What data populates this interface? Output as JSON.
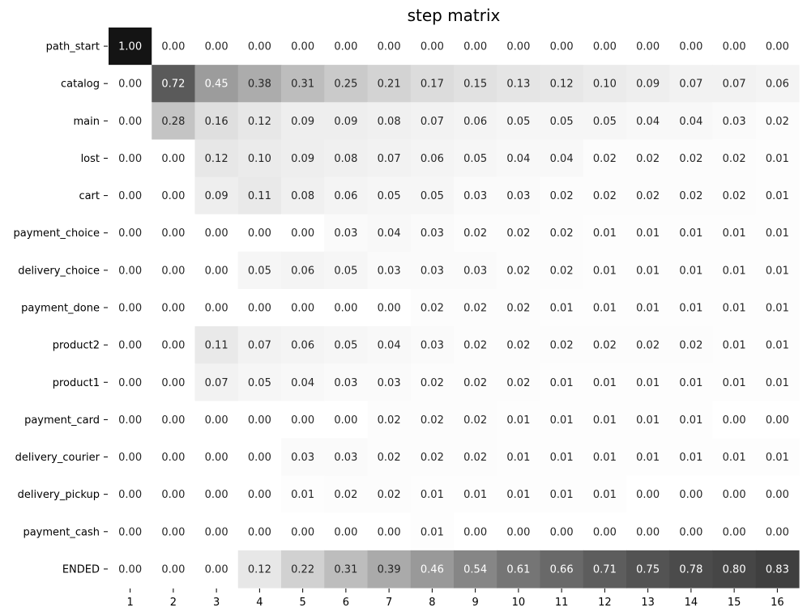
{
  "chart_data": {
    "type": "heatmap",
    "title": "step matrix",
    "xlabel": "",
    "ylabel": "",
    "colorbar": false,
    "colormap": "greys",
    "value_range": [
      0,
      1
    ],
    "x": [
      "1",
      "2",
      "3",
      "4",
      "5",
      "6",
      "7",
      "8",
      "9",
      "10",
      "11",
      "12",
      "13",
      "14",
      "15",
      "16"
    ],
    "y": [
      "path_start",
      "catalog",
      "main",
      "lost",
      "cart",
      "payment_choice",
      "delivery_choice",
      "payment_done",
      "product2",
      "product1",
      "payment_card",
      "delivery_courier",
      "delivery_pickup",
      "payment_cash",
      "ENDED"
    ],
    "values": [
      [
        "1.00",
        "0.00",
        "0.00",
        "0.00",
        "0.00",
        "0.00",
        "0.00",
        "0.00",
        "0.00",
        "0.00",
        "0.00",
        "0.00",
        "0.00",
        "0.00",
        "0.00",
        "0.00"
      ],
      [
        "0.00",
        "0.72",
        "0.45",
        "0.38",
        "0.31",
        "0.25",
        "0.21",
        "0.17",
        "0.15",
        "0.13",
        "0.12",
        "0.10",
        "0.09",
        "0.07",
        "0.07",
        "0.06"
      ],
      [
        "0.00",
        "0.28",
        "0.16",
        "0.12",
        "0.09",
        "0.09",
        "0.08",
        "0.07",
        "0.06",
        "0.05",
        "0.05",
        "0.05",
        "0.04",
        "0.04",
        "0.03",
        "0.02"
      ],
      [
        "0.00",
        "0.00",
        "0.12",
        "0.10",
        "0.09",
        "0.08",
        "0.07",
        "0.06",
        "0.05",
        "0.04",
        "0.04",
        "0.02",
        "0.02",
        "0.02",
        "0.02",
        "0.01"
      ],
      [
        "0.00",
        "0.00",
        "0.09",
        "0.11",
        "0.08",
        "0.06",
        "0.05",
        "0.05",
        "0.03",
        "0.03",
        "0.02",
        "0.02",
        "0.02",
        "0.02",
        "0.02",
        "0.01"
      ],
      [
        "0.00",
        "0.00",
        "0.00",
        "0.00",
        "0.00",
        "0.03",
        "0.04",
        "0.03",
        "0.02",
        "0.02",
        "0.02",
        "0.01",
        "0.01",
        "0.01",
        "0.01",
        "0.01"
      ],
      [
        "0.00",
        "0.00",
        "0.00",
        "0.05",
        "0.06",
        "0.05",
        "0.03",
        "0.03",
        "0.03",
        "0.02",
        "0.02",
        "0.01",
        "0.01",
        "0.01",
        "0.01",
        "0.01"
      ],
      [
        "0.00",
        "0.00",
        "0.00",
        "0.00",
        "0.00",
        "0.00",
        "0.00",
        "0.02",
        "0.02",
        "0.02",
        "0.01",
        "0.01",
        "0.01",
        "0.01",
        "0.01",
        "0.01"
      ],
      [
        "0.00",
        "0.00",
        "0.11",
        "0.07",
        "0.06",
        "0.05",
        "0.04",
        "0.03",
        "0.02",
        "0.02",
        "0.02",
        "0.02",
        "0.02",
        "0.02",
        "0.01",
        "0.01"
      ],
      [
        "0.00",
        "0.00",
        "0.07",
        "0.05",
        "0.04",
        "0.03",
        "0.03",
        "0.02",
        "0.02",
        "0.02",
        "0.01",
        "0.01",
        "0.01",
        "0.01",
        "0.01",
        "0.01"
      ],
      [
        "0.00",
        "0.00",
        "0.00",
        "0.00",
        "0.00",
        "0.00",
        "0.02",
        "0.02",
        "0.02",
        "0.01",
        "0.01",
        "0.01",
        "0.01",
        "0.01",
        "0.00",
        "0.00"
      ],
      [
        "0.00",
        "0.00",
        "0.00",
        "0.00",
        "0.03",
        "0.03",
        "0.02",
        "0.02",
        "0.02",
        "0.01",
        "0.01",
        "0.01",
        "0.01",
        "0.01",
        "0.01",
        "0.01"
      ],
      [
        "0.00",
        "0.00",
        "0.00",
        "0.00",
        "0.01",
        "0.02",
        "0.02",
        "0.01",
        "0.01",
        "0.01",
        "0.01",
        "0.01",
        "0.00",
        "0.00",
        "0.00",
        "0.00"
      ],
      [
        "0.00",
        "0.00",
        "0.00",
        "0.00",
        "0.00",
        "0.00",
        "0.00",
        "0.01",
        "0.00",
        "0.00",
        "0.00",
        "0.00",
        "0.00",
        "0.00",
        "0.00",
        "0.00"
      ],
      [
        "0.00",
        "0.00",
        "0.00",
        "0.12",
        "0.22",
        "0.31",
        "0.39",
        "0.46",
        "0.54",
        "0.61",
        "0.66",
        "0.71",
        "0.75",
        "0.78",
        "0.80",
        "0.83"
      ]
    ]
  }
}
